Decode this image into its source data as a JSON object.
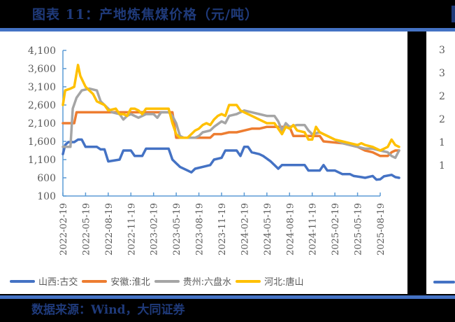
{
  "header": {
    "title": "图表 11：产地炼焦煤价格（元/吨）"
  },
  "footer": {
    "source": "数据来源：Wind，大同证券"
  },
  "right_panel": {
    "y_ticks_partial": [
      "3",
      "3",
      "2",
      "2",
      "1",
      "1"
    ]
  },
  "colors": {
    "accent_bar": "#4472c4",
    "title_text": "#1f3a7a",
    "axis": "#5b9bd5"
  },
  "chart_data": {
    "type": "line",
    "title": "产地炼焦煤价格（元/吨）",
    "xlabel": "",
    "ylabel": "",
    "ylim": [
      100,
      4100
    ],
    "y_ticks": [
      100,
      600,
      1100,
      1600,
      2100,
      2600,
      3100,
      3600,
      4100
    ],
    "y_tick_labels": [
      "100",
      "600",
      "1,100",
      "1,600",
      "2,100",
      "2,600",
      "3,100",
      "3,600",
      "4,100"
    ],
    "x_tick_labels": [
      "2022-02-19",
      "2022-05-19",
      "2022-08-19",
      "2022-11-19",
      "2023-02-19",
      "2023-05-19",
      "2023-08-19",
      "2023-11-19",
      "2024-02-19",
      "2024-05-19",
      "2024-08-19",
      "2024-11-19",
      "2025-02-19",
      "2025-05-19",
      "2025-08-19"
    ],
    "x_unit": "months since 2022-02-19",
    "grid": false,
    "legend_position": "bottom",
    "series": [
      {
        "name": "山西:古交",
        "color": "#4472c4",
        "points": [
          [
            0,
            1250
          ],
          [
            0.3,
            1500
          ],
          [
            0.7,
            1580
          ],
          [
            1.5,
            1580
          ],
          [
            2,
            1650
          ],
          [
            2.5,
            1650
          ],
          [
            3,
            1450
          ],
          [
            4.5,
            1450
          ],
          [
            5,
            1380
          ],
          [
            5.5,
            1380
          ],
          [
            6,
            1050
          ],
          [
            7.5,
            1100
          ],
          [
            8,
            1350
          ],
          [
            9,
            1350
          ],
          [
            9.5,
            1200
          ],
          [
            10.5,
            1200
          ],
          [
            11,
            1400
          ],
          [
            14,
            1400
          ],
          [
            14.5,
            1100
          ],
          [
            15,
            1000
          ],
          [
            15.5,
            900
          ],
          [
            16.5,
            800
          ],
          [
            17,
            750
          ],
          [
            17.5,
            850
          ],
          [
            18.5,
            900
          ],
          [
            19.5,
            950
          ],
          [
            20,
            1100
          ],
          [
            21,
            1150
          ],
          [
            21.5,
            1350
          ],
          [
            23,
            1350
          ],
          [
            23.5,
            1200
          ],
          [
            24,
            1450
          ],
          [
            24.5,
            1450
          ],
          [
            25,
            1300
          ],
          [
            26,
            1250
          ],
          [
            26.5,
            1200
          ],
          [
            27.5,
            1050
          ],
          [
            28.5,
            850
          ],
          [
            29,
            950
          ],
          [
            31,
            950
          ],
          [
            32,
            950
          ],
          [
            32.5,
            800
          ],
          [
            34,
            800
          ],
          [
            34.5,
            950
          ],
          [
            35,
            800
          ],
          [
            36,
            800
          ],
          [
            36.5,
            750
          ],
          [
            37,
            700
          ],
          [
            38,
            700
          ],
          [
            38.5,
            650
          ],
          [
            39.5,
            620
          ],
          [
            40,
            600
          ],
          [
            41,
            650
          ],
          [
            41.5,
            550
          ],
          [
            42,
            560
          ],
          [
            42.5,
            640
          ],
          [
            43.5,
            680
          ],
          [
            44,
            620
          ],
          [
            44.5,
            600
          ]
        ]
      },
      {
        "name": "安徽:淮北",
        "color": "#ed7d31",
        "points": [
          [
            0,
            2100
          ],
          [
            1.5,
            2100
          ],
          [
            1.8,
            2400
          ],
          [
            14.5,
            2400
          ],
          [
            15,
            1700
          ],
          [
            19.5,
            1700
          ],
          [
            20,
            1800
          ],
          [
            21,
            1800
          ],
          [
            22,
            1850
          ],
          [
            23,
            1850
          ],
          [
            24,
            1900
          ],
          [
            25,
            1950
          ],
          [
            26,
            1950
          ],
          [
            27,
            2000
          ],
          [
            30,
            2000
          ],
          [
            30.5,
            1750
          ],
          [
            34,
            1750
          ],
          [
            34.5,
            1600
          ],
          [
            37,
            1550
          ],
          [
            38,
            1500
          ],
          [
            39,
            1450
          ],
          [
            40,
            1350
          ],
          [
            41,
            1300
          ],
          [
            42,
            1200
          ],
          [
            43,
            1200
          ],
          [
            43.5,
            1300
          ],
          [
            44,
            1350
          ],
          [
            44.5,
            1350
          ]
        ]
      },
      {
        "name": "贵州:六盘水",
        "color": "#a5a5a5",
        "points": [
          [
            0,
            1450
          ],
          [
            1,
            1450
          ],
          [
            1.3,
            2500
          ],
          [
            1.8,
            2800
          ],
          [
            2.5,
            3000
          ],
          [
            3.5,
            3050
          ],
          [
            4.5,
            3000
          ],
          [
            5,
            2700
          ],
          [
            5.5,
            2600
          ],
          [
            6.5,
            2400
          ],
          [
            7.5,
            2350
          ],
          [
            8,
            2200
          ],
          [
            8.5,
            2300
          ],
          [
            9,
            2350
          ],
          [
            10,
            2250
          ],
          [
            11,
            2350
          ],
          [
            12,
            2350
          ],
          [
            12.5,
            2250
          ],
          [
            13,
            2400
          ],
          [
            14,
            2400
          ],
          [
            14.5,
            2300
          ],
          [
            15,
            2100
          ],
          [
            15.5,
            1750
          ],
          [
            16,
            1700
          ],
          [
            17,
            1700
          ],
          [
            17.5,
            1700
          ],
          [
            18,
            1750
          ],
          [
            18.5,
            1850
          ],
          [
            19.5,
            1900
          ],
          [
            20,
            2000
          ],
          [
            21,
            2150
          ],
          [
            21.5,
            2100
          ],
          [
            22,
            2300
          ],
          [
            23,
            2350
          ],
          [
            23.5,
            2400
          ],
          [
            24,
            2450
          ],
          [
            25,
            2400
          ],
          [
            26,
            2350
          ],
          [
            27,
            2300
          ],
          [
            28,
            2300
          ],
          [
            28.5,
            2150
          ],
          [
            29,
            1900
          ],
          [
            29.5,
            2100
          ],
          [
            30,
            2000
          ],
          [
            31,
            2050
          ],
          [
            32,
            2050
          ],
          [
            32.5,
            1900
          ],
          [
            33,
            1800
          ],
          [
            34,
            1850
          ],
          [
            35,
            1750
          ],
          [
            36,
            1650
          ],
          [
            36.5,
            1600
          ],
          [
            37,
            1550
          ],
          [
            38,
            1500
          ],
          [
            39,
            1450
          ],
          [
            40,
            1400
          ],
          [
            41,
            1400
          ],
          [
            42,
            1350
          ],
          [
            43,
            1300
          ],
          [
            43.5,
            1200
          ],
          [
            44,
            1150
          ],
          [
            44.5,
            1350
          ]
        ]
      },
      {
        "name": "河北:唐山",
        "color": "#ffc000",
        "points": [
          [
            0,
            2600
          ],
          [
            0.3,
            3000
          ],
          [
            1,
            3050
          ],
          [
            1.5,
            3100
          ],
          [
            2,
            3700
          ],
          [
            2.3,
            3400
          ],
          [
            3,
            3100
          ],
          [
            3.5,
            3000
          ],
          [
            4,
            2900
          ],
          [
            4.5,
            2700
          ],
          [
            5,
            2650
          ],
          [
            5.5,
            2600
          ],
          [
            6,
            2450
          ],
          [
            7,
            2500
          ],
          [
            7.5,
            2350
          ],
          [
            8,
            2350
          ],
          [
            8.5,
            2300
          ],
          [
            9,
            2500
          ],
          [
            9.5,
            2500
          ],
          [
            10,
            2450
          ],
          [
            10.5,
            2350
          ],
          [
            11,
            2500
          ],
          [
            12,
            2500
          ],
          [
            13,
            2500
          ],
          [
            14,
            2500
          ],
          [
            14.5,
            2100
          ],
          [
            15,
            1800
          ],
          [
            15.5,
            1700
          ],
          [
            16.5,
            1700
          ],
          [
            17,
            1800
          ],
          [
            17.5,
            1900
          ],
          [
            18,
            1950
          ],
          [
            18.5,
            2050
          ],
          [
            19,
            2100
          ],
          [
            19.5,
            2050
          ],
          [
            20,
            2200
          ],
          [
            20.5,
            2300
          ],
          [
            21,
            2350
          ],
          [
            21.5,
            2300
          ],
          [
            22,
            2600
          ],
          [
            23,
            2600
          ],
          [
            23.5,
            2450
          ],
          [
            24,
            2400
          ],
          [
            25,
            2300
          ],
          [
            26,
            2200
          ],
          [
            27,
            2100
          ],
          [
            28,
            2100
          ],
          [
            29,
            1800
          ],
          [
            29.5,
            2000
          ],
          [
            30,
            1950
          ],
          [
            30.5,
            2050
          ],
          [
            31,
            1900
          ],
          [
            32,
            1850
          ],
          [
            32.5,
            1650
          ],
          [
            33,
            1650
          ],
          [
            33.5,
            2000
          ],
          [
            34,
            1850
          ],
          [
            35,
            1750
          ],
          [
            36,
            1650
          ],
          [
            37,
            1600
          ],
          [
            38,
            1550
          ],
          [
            39,
            1500
          ],
          [
            39.5,
            1550
          ],
          [
            40,
            1500
          ],
          [
            41,
            1450
          ],
          [
            42,
            1350
          ],
          [
            42.5,
            1400
          ],
          [
            43,
            1450
          ],
          [
            43.5,
            1650
          ],
          [
            44,
            1500
          ],
          [
            44.5,
            1450
          ]
        ]
      }
    ]
  }
}
